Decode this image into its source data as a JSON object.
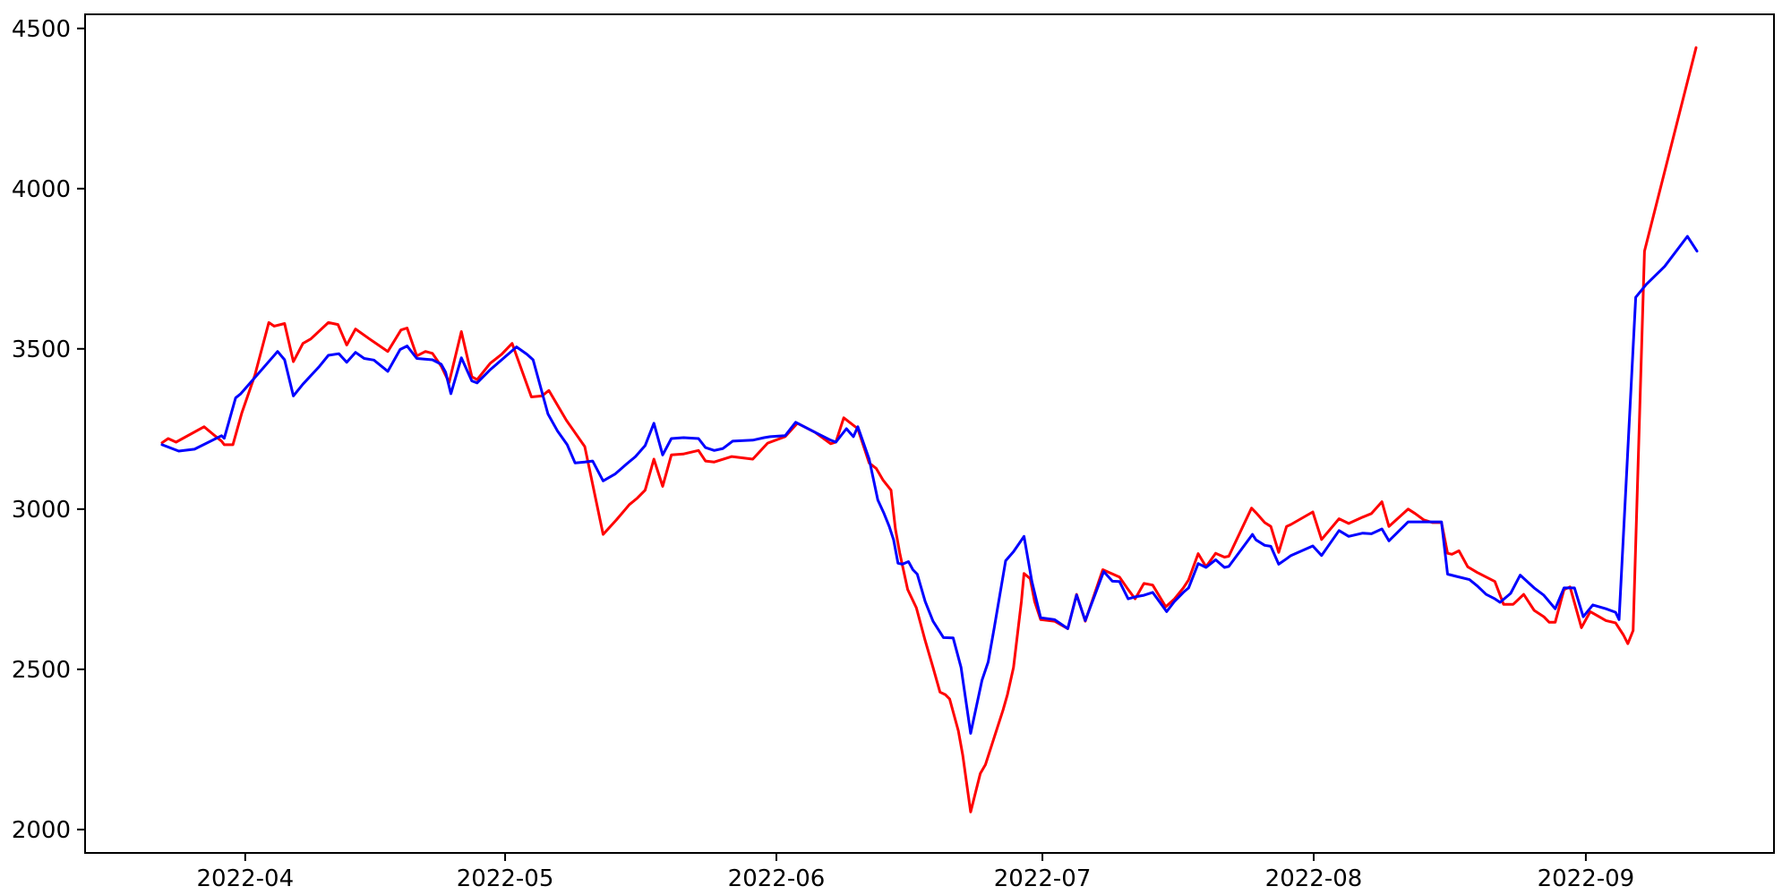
{
  "chart_data": {
    "type": "line",
    "title": "",
    "xlabel": "",
    "ylabel": "",
    "grid": false,
    "legend": "none",
    "background_color": "#ffffff",
    "spine_color": "#000000",
    "tick_color": "#000000",
    "x_axis": {
      "unit": "days since first observation (first point ≈ 2022-03-22, daily data)",
      "tick_labels": [
        "2022-04",
        "2022-05",
        "2022-06",
        "2022-07",
        "2022-08",
        "2022-09"
      ],
      "tick_positions_days": [
        9.5,
        39.2,
        70.2,
        100.6,
        131.6,
        162.7
      ],
      "range_days": [
        -8.8,
        184.2
      ]
    },
    "y_axis": {
      "tick_labels": [
        "2000",
        "2500",
        "3000",
        "3500",
        "4000",
        "4500"
      ],
      "tick_values": [
        2000,
        2500,
        3000,
        3500,
        4000,
        4500
      ],
      "range": [
        1927,
        4544
      ]
    },
    "series": [
      {
        "name": "red-series",
        "color": "#ff0000",
        "points_day_value": [
          [
            0,
            3207
          ],
          [
            0.7,
            3220
          ],
          [
            1.6,
            3209
          ],
          [
            4.8,
            3257
          ],
          [
            5.8,
            3234
          ],
          [
            6.8,
            3212
          ],
          [
            7.1,
            3201
          ],
          [
            8.1,
            3201
          ],
          [
            9.1,
            3299
          ],
          [
            10.6,
            3418
          ],
          [
            12.2,
            3582
          ],
          [
            12.8,
            3571
          ],
          [
            14,
            3579
          ],
          [
            15,
            3460
          ],
          [
            16.1,
            3517
          ],
          [
            17,
            3531
          ],
          [
            19,
            3582
          ],
          [
            20.1,
            3576
          ],
          [
            21.1,
            3512
          ],
          [
            22.1,
            3562
          ],
          [
            23.7,
            3531
          ],
          [
            25.8,
            3492
          ],
          [
            27.3,
            3559
          ],
          [
            28,
            3565
          ],
          [
            29.1,
            3478
          ],
          [
            30.1,
            3492
          ],
          [
            30.9,
            3486
          ],
          [
            31.9,
            3446
          ],
          [
            32.8,
            3395
          ],
          [
            34.2,
            3554
          ],
          [
            35.4,
            3413
          ],
          [
            36,
            3404
          ],
          [
            37.5,
            3455
          ],
          [
            38.8,
            3483
          ],
          [
            40,
            3517
          ],
          [
            42.2,
            3350
          ],
          [
            43.4,
            3353
          ],
          [
            44.2,
            3370
          ],
          [
            46.2,
            3277
          ],
          [
            48.3,
            3195
          ],
          [
            50.4,
            2921
          ],
          [
            51.9,
            2966
          ],
          [
            53.4,
            3014
          ],
          [
            54.3,
            3034
          ],
          [
            55.2,
            3059
          ],
          [
            56.2,
            3156
          ],
          [
            57.2,
            3071
          ],
          [
            58.2,
            3169
          ],
          [
            59.6,
            3172
          ],
          [
            61.3,
            3183
          ],
          [
            62.1,
            3150
          ],
          [
            63.1,
            3147
          ],
          [
            65.1,
            3164
          ],
          [
            67.5,
            3156
          ],
          [
            69.2,
            3206
          ],
          [
            71.2,
            3226
          ],
          [
            72.6,
            3268
          ],
          [
            74.6,
            3240
          ],
          [
            76.4,
            3204
          ],
          [
            77,
            3209
          ],
          [
            77.9,
            3285
          ],
          [
            78.7,
            3268
          ],
          [
            79.5,
            3251
          ],
          [
            80.8,
            3144
          ],
          [
            81.6,
            3127
          ],
          [
            82.4,
            3090
          ],
          [
            83.3,
            3059
          ],
          [
            83.8,
            2938
          ],
          [
            84.3,
            2862
          ],
          [
            85.2,
            2749
          ],
          [
            85.6,
            2726
          ],
          [
            86.2,
            2692
          ],
          [
            87.2,
            2590
          ],
          [
            88.1,
            2506
          ],
          [
            88.9,
            2429
          ],
          [
            89.5,
            2421
          ],
          [
            90,
            2407
          ],
          [
            91,
            2308
          ],
          [
            91.5,
            2232
          ],
          [
            92.4,
            2055
          ],
          [
            93.5,
            2175
          ],
          [
            94.1,
            2203
          ],
          [
            95.1,
            2288
          ],
          [
            96.1,
            2373
          ],
          [
            96.6,
            2421
          ],
          [
            97.3,
            2506
          ],
          [
            98.2,
            2712
          ],
          [
            98.5,
            2799
          ],
          [
            99.2,
            2783
          ],
          [
            99.7,
            2712
          ],
          [
            100.4,
            2655
          ],
          [
            102,
            2650
          ],
          [
            103.5,
            2627
          ],
          [
            104.5,
            2734
          ],
          [
            105.5,
            2650
          ],
          [
            107.5,
            2811
          ],
          [
            109.4,
            2788
          ],
          [
            110.4,
            2749
          ],
          [
            111.2,
            2720
          ],
          [
            112.2,
            2768
          ],
          [
            113.2,
            2763
          ],
          [
            114.7,
            2695
          ],
          [
            115.7,
            2720
          ],
          [
            116.7,
            2754
          ],
          [
            117.3,
            2779
          ],
          [
            118.4,
            2861
          ],
          [
            119.3,
            2820
          ],
          [
            120.4,
            2862
          ],
          [
            121.4,
            2850
          ],
          [
            121.9,
            2853
          ],
          [
            124.5,
            3003
          ],
          [
            125,
            2989
          ],
          [
            126,
            2958
          ],
          [
            126.7,
            2946
          ],
          [
            127.6,
            2865
          ],
          [
            128.5,
            2946
          ],
          [
            129,
            2952
          ],
          [
            131.5,
            2991
          ],
          [
            132.5,
            2905
          ],
          [
            134.5,
            2970
          ],
          [
            135.6,
            2955
          ],
          [
            137.2,
            2975
          ],
          [
            138.2,
            2986
          ],
          [
            139.4,
            3023
          ],
          [
            140.2,
            2946
          ],
          [
            142.4,
            3000
          ],
          [
            143.2,
            2986
          ],
          [
            144.2,
            2966
          ],
          [
            145.2,
            2958
          ],
          [
            146.2,
            2958
          ],
          [
            146.9,
            2862
          ],
          [
            147.4,
            2859
          ],
          [
            148.2,
            2870
          ],
          [
            149.2,
            2820
          ],
          [
            150.3,
            2802
          ],
          [
            151.3,
            2788
          ],
          [
            152.3,
            2774
          ],
          [
            153.3,
            2703
          ],
          [
            154.4,
            2703
          ],
          [
            155.6,
            2734
          ],
          [
            156.8,
            2684
          ],
          [
            157.9,
            2664
          ],
          [
            158.5,
            2647
          ],
          [
            159.2,
            2647
          ],
          [
            160.2,
            2749
          ],
          [
            160.9,
            2757
          ],
          [
            162.2,
            2630
          ],
          [
            163.2,
            2680
          ],
          [
            165,
            2652
          ],
          [
            166.1,
            2645
          ],
          [
            167,
            2607
          ],
          [
            167.5,
            2580
          ],
          [
            168.1,
            2621
          ],
          [
            169.4,
            3805
          ],
          [
            175.3,
            4440
          ]
        ]
      },
      {
        "name": "blue-series",
        "color": "#0000ff",
        "points_day_value": [
          [
            0,
            3201
          ],
          [
            1.9,
            3181
          ],
          [
            3.7,
            3187
          ],
          [
            6.8,
            3229
          ],
          [
            7.1,
            3221
          ],
          [
            8.4,
            3347
          ],
          [
            9,
            3360
          ],
          [
            13.2,
            3492
          ],
          [
            14,
            3466
          ],
          [
            15,
            3353
          ],
          [
            16.1,
            3390
          ],
          [
            18,
            3446
          ],
          [
            19,
            3480
          ],
          [
            20.2,
            3485
          ],
          [
            21.1,
            3458
          ],
          [
            22.1,
            3489
          ],
          [
            23.1,
            3470
          ],
          [
            24.2,
            3465
          ],
          [
            25.8,
            3430
          ],
          [
            27.2,
            3498
          ],
          [
            28,
            3509
          ],
          [
            29.1,
            3470
          ],
          [
            30.9,
            3466
          ],
          [
            31.9,
            3452
          ],
          [
            32.4,
            3427
          ],
          [
            33,
            3360
          ],
          [
            34.2,
            3472
          ],
          [
            35.4,
            3400
          ],
          [
            36,
            3394
          ],
          [
            37.5,
            3435
          ],
          [
            40.5,
            3506
          ],
          [
            41.7,
            3483
          ],
          [
            42.4,
            3466
          ],
          [
            44.1,
            3297
          ],
          [
            45.2,
            3243
          ],
          [
            46.3,
            3201
          ],
          [
            47.2,
            3144
          ],
          [
            48.3,
            3147
          ],
          [
            49.2,
            3150
          ],
          [
            50.4,
            3088
          ],
          [
            51.8,
            3110
          ],
          [
            53.1,
            3141
          ],
          [
            54.1,
            3164
          ],
          [
            55.2,
            3198
          ],
          [
            56.2,
            3268
          ],
          [
            57.2,
            3169
          ],
          [
            58.2,
            3220
          ],
          [
            59.6,
            3223
          ],
          [
            61.3,
            3220
          ],
          [
            62.1,
            3192
          ],
          [
            63.1,
            3183
          ],
          [
            64.1,
            3189
          ],
          [
            65.2,
            3212
          ],
          [
            67.5,
            3215
          ],
          [
            68.8,
            3223
          ],
          [
            69.5,
            3226
          ],
          [
            71.2,
            3229
          ],
          [
            72.4,
            3271
          ],
          [
            74.6,
            3240
          ],
          [
            76.4,
            3215
          ],
          [
            77,
            3209
          ],
          [
            78.2,
            3251
          ],
          [
            79,
            3226
          ],
          [
            79.5,
            3257
          ],
          [
            80.8,
            3156
          ],
          [
            81.8,
            3028
          ],
          [
            82.5,
            2986
          ],
          [
            83.1,
            2946
          ],
          [
            83.6,
            2904
          ],
          [
            84.1,
            2831
          ],
          [
            84.6,
            2828
          ],
          [
            85.3,
            2836
          ],
          [
            85.8,
            2811
          ],
          [
            86.3,
            2797
          ],
          [
            87.2,
            2712
          ],
          [
            88.1,
            2650
          ],
          [
            89.3,
            2599
          ],
          [
            90.4,
            2598
          ],
          [
            91.3,
            2506
          ],
          [
            92.4,
            2300
          ],
          [
            93.7,
            2466
          ],
          [
            94.4,
            2523
          ],
          [
            95.1,
            2630
          ],
          [
            96.4,
            2839
          ],
          [
            97.3,
            2867
          ],
          [
            98.5,
            2915
          ],
          [
            99.4,
            2774
          ],
          [
            100.4,
            2661
          ],
          [
            102,
            2655
          ],
          [
            103.5,
            2627
          ],
          [
            104.5,
            2732
          ],
          [
            105.5,
            2652
          ],
          [
            107.6,
            2805
          ],
          [
            108.6,
            2775
          ],
          [
            109.4,
            2774
          ],
          [
            110.4,
            2720
          ],
          [
            111.2,
            2726
          ],
          [
            112.2,
            2731
          ],
          [
            113.2,
            2740
          ],
          [
            114.8,
            2680
          ],
          [
            115.7,
            2712
          ],
          [
            116.7,
            2740
          ],
          [
            117.3,
            2754
          ],
          [
            118.4,
            2830
          ],
          [
            119.3,
            2818
          ],
          [
            120.4,
            2842
          ],
          [
            121.4,
            2818
          ],
          [
            121.9,
            2821
          ],
          [
            124.6,
            2921
          ],
          [
            125,
            2904
          ],
          [
            126,
            2887
          ],
          [
            126.7,
            2884
          ],
          [
            127.6,
            2828
          ],
          [
            128.5,
            2845
          ],
          [
            129,
            2855
          ],
          [
            131.5,
            2885
          ],
          [
            132.5,
            2855
          ],
          [
            134.5,
            2933
          ],
          [
            135.6,
            2915
          ],
          [
            137.2,
            2925
          ],
          [
            138.2,
            2923
          ],
          [
            139.4,
            2938
          ],
          [
            140.2,
            2901
          ],
          [
            142.4,
            2960
          ],
          [
            146.2,
            2960
          ],
          [
            146.9,
            2797
          ],
          [
            147.9,
            2790
          ],
          [
            149.4,
            2780
          ],
          [
            150.3,
            2760
          ],
          [
            151.3,
            2734
          ],
          [
            152.3,
            2720
          ],
          [
            152.9,
            2709
          ],
          [
            154.1,
            2737
          ],
          [
            155.2,
            2794
          ],
          [
            156.8,
            2754
          ],
          [
            157.9,
            2731
          ],
          [
            159.2,
            2689
          ],
          [
            160.2,
            2754
          ],
          [
            161.4,
            2754
          ],
          [
            162.4,
            2664
          ],
          [
            163.5,
            2701
          ],
          [
            165,
            2689
          ],
          [
            166.1,
            2678
          ],
          [
            166.5,
            2655
          ],
          [
            168.4,
            3661
          ],
          [
            169.6,
            3701
          ],
          [
            171.7,
            3757
          ],
          [
            174.3,
            3851
          ],
          [
            175.4,
            3805
          ]
        ]
      }
    ]
  }
}
